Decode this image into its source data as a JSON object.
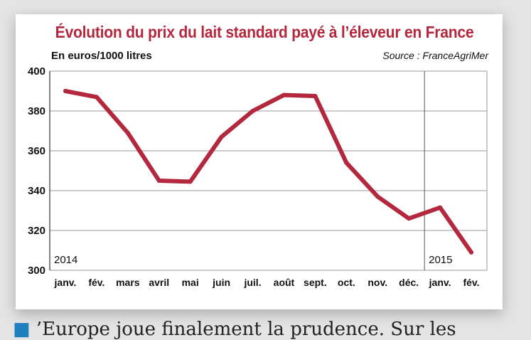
{
  "chart_data": {
    "type": "line",
    "title": "Évolution du prix du lait standard payé à l’éleveur en France",
    "ylabel": "En euros/1000 litres",
    "source": "Source : FranceAgriMer",
    "categories": [
      "janv.",
      "fév.",
      "mars",
      "avril",
      "mai",
      "juin",
      "juil.",
      "août",
      "sept.",
      "oct.",
      "nov.",
      "déc.",
      "janv.",
      "fév."
    ],
    "series": [
      {
        "values": [
          390,
          387,
          369,
          345,
          344.5,
          367,
          380,
          388,
          387.5,
          354,
          337,
          326,
          331.5,
          309
        ]
      }
    ],
    "ylim": [
      300,
      400
    ],
    "yticks": [
      300,
      320,
      340,
      360,
      380,
      400
    ],
    "year_labels": [
      {
        "text": "2014",
        "category_index": 0
      },
      {
        "text": "2015",
        "category_index": 12
      }
    ],
    "grid": true,
    "color": "#b4283e"
  },
  "footer": {
    "bullet": "■",
    "text": "’Europe joue finalement la prudence. Sur les"
  }
}
